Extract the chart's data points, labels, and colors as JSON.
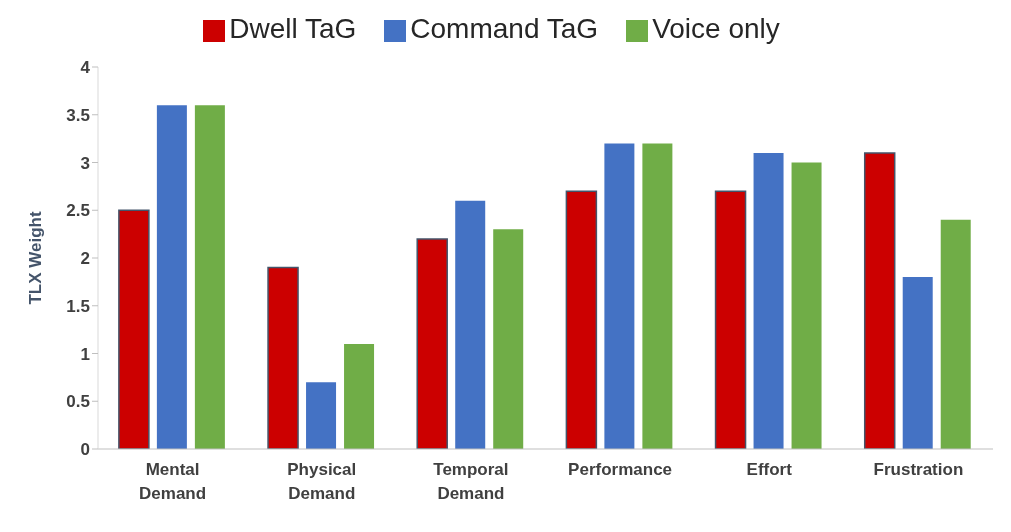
{
  "chart_data": {
    "type": "bar",
    "ylabel": "TLX Weight",
    "categories": [
      "Mental Demand",
      "Physical Demand",
      "Temporal Demand",
      "Performance",
      "Effort",
      "Frustration"
    ],
    "series": [
      {
        "name": "Dwell TaG",
        "color": "#cc0000",
        "values": [
          2.5,
          1.9,
          2.2,
          2.7,
          2.7,
          3.1
        ]
      },
      {
        "name": "Command TaG",
        "color": "#4472c4",
        "values": [
          3.6,
          0.7,
          2.6,
          3.2,
          3.1,
          1.8
        ]
      },
      {
        "name": "Voice only",
        "color": "#70ad47",
        "values": [
          3.6,
          1.1,
          2.3,
          3.2,
          3.0,
          2.4
        ]
      }
    ],
    "ylim": [
      0,
      4
    ],
    "yticks": [
      0,
      0.5,
      1,
      1.5,
      2,
      2.5,
      3,
      3.5,
      4
    ],
    "grid": false,
    "legend": "top"
  }
}
